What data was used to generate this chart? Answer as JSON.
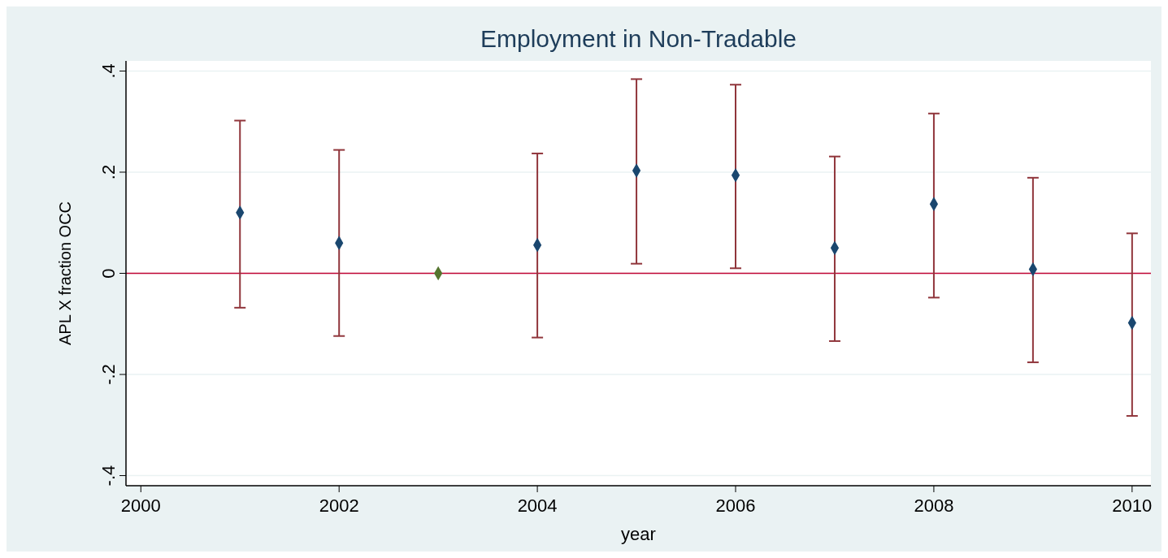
{
  "chart_data": {
    "type": "scatter",
    "title": "Employment in Non-Tradable",
    "xlabel": "year",
    "ylabel": "APL X fraction OCC",
    "xlim": [
      1999.85,
      2010.19
    ],
    "xticks": [
      2000,
      2002,
      2004,
      2006,
      2008,
      2010
    ],
    "ylim": [
      -0.42,
      0.42
    ],
    "yticks": [
      {
        "value": -0.4,
        "label": "-.4"
      },
      {
        "value": -0.2,
        "label": "-.2"
      },
      {
        "value": 0,
        "label": "0"
      },
      {
        "value": 0.2,
        "label": ".2"
      },
      {
        "value": 0.4,
        "label": ".4"
      }
    ],
    "grid": "y",
    "marker": "diamond",
    "ref_lines": [
      {
        "axis": "y",
        "value": 0,
        "color": "#c10534"
      }
    ],
    "series": [
      {
        "color": "#1a476f",
        "x": [
          2001,
          2002,
          2004,
          2005,
          2006,
          2007,
          2008,
          2009,
          2010
        ],
        "values": [
          0.12,
          0.06,
          0.056,
          0.203,
          0.194,
          0.05,
          0.137,
          0.008,
          -0.098
        ],
        "errors": [
          [
            -0.068,
            0.302
          ],
          [
            -0.124,
            0.244
          ],
          [
            -0.127,
            0.237
          ],
          [
            0.019,
            0.384
          ],
          [
            0.01,
            0.373
          ],
          [
            -0.134,
            0.231
          ],
          [
            -0.048,
            0.316
          ],
          [
            -0.176,
            0.189
          ],
          [
            -0.282,
            0.079
          ]
        ]
      },
      {
        "color": "#55752f",
        "x": [
          2003
        ],
        "values": [
          0
        ]
      }
    ]
  }
}
